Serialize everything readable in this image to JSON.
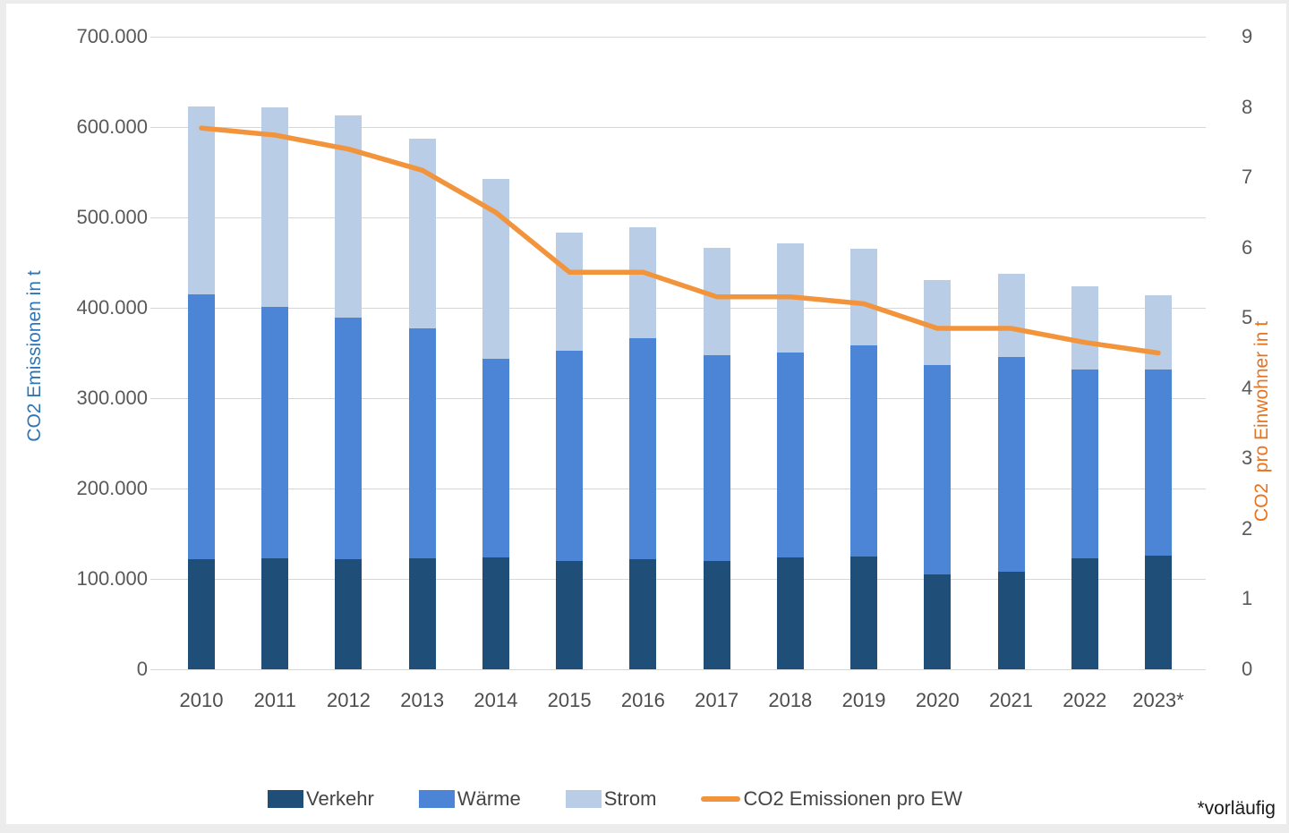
{
  "chart_data": {
    "type": "bar",
    "subtype": "stacked-bars-with-line-overlay",
    "title": "",
    "categories": [
      "2010",
      "2011",
      "2012",
      "2013",
      "2014",
      "2015",
      "2016",
      "2017",
      "2018",
      "2019",
      "2020",
      "2021",
      "2022",
      "2023*"
    ],
    "series": [
      {
        "name": "Verkehr",
        "type": "bar",
        "axis": "left",
        "color": "#1f4e79",
        "values": [
          122000,
          123000,
          122000,
          123000,
          124000,
          120000,
          122000,
          120000,
          124000,
          125000,
          105000,
          108000,
          123000,
          126000
        ]
      },
      {
        "name": "Wärme",
        "type": "bar",
        "axis": "left",
        "color": "#4c85d6",
        "values": [
          293000,
          278000,
          267000,
          254000,
          220000,
          233000,
          244000,
          228000,
          227000,
          233000,
          232000,
          238000,
          209000,
          206000
        ]
      },
      {
        "name": "Strom",
        "type": "bar",
        "axis": "left",
        "color": "#b9cde6",
        "values": [
          208000,
          221000,
          224000,
          210000,
          199000,
          130000,
          123000,
          118000,
          120000,
          107000,
          94000,
          92000,
          92000,
          82000
        ]
      },
      {
        "name": "CO2 Emissionen pro EW",
        "type": "line",
        "axis": "right",
        "color": "#f2943c",
        "values": [
          7.7,
          7.6,
          7.4,
          7.1,
          6.5,
          5.65,
          5.65,
          5.3,
          5.3,
          5.2,
          4.85,
          4.85,
          4.65,
          4.5
        ]
      }
    ],
    "stacked_totals": [
      623000,
      622000,
      613000,
      587000,
      543000,
      483000,
      489000,
      466000,
      471000,
      465000,
      431000,
      438000,
      424000,
      414000
    ],
    "left_axis": {
      "label": "CO2 Emissionen in t",
      "min": 0,
      "max": 700000,
      "step": 100000,
      "tick_labels": [
        "0",
        "100.000",
        "200.000",
        "300.000",
        "400.000",
        "500.000",
        "600.000",
        "700.000"
      ]
    },
    "right_axis": {
      "label": "CO2  pro Einwohner in t",
      "min": 0,
      "max": 9,
      "step": 1,
      "tick_labels": [
        "0",
        "1",
        "2",
        "3",
        "4",
        "5",
        "6",
        "7",
        "8",
        "9"
      ]
    },
    "grid": true,
    "legend_position": "bottom",
    "footnote": "*vorläufig"
  },
  "colors": {
    "background": "#ffffff",
    "page_border": "#ececec",
    "gridline": "#d6d6d6",
    "tick_text": "#595959",
    "x_tick_text": "#4d4d4d",
    "left_axis_title": "#2e75b6",
    "right_axis_title": "#e8731e",
    "legend_text": "#444444"
  }
}
